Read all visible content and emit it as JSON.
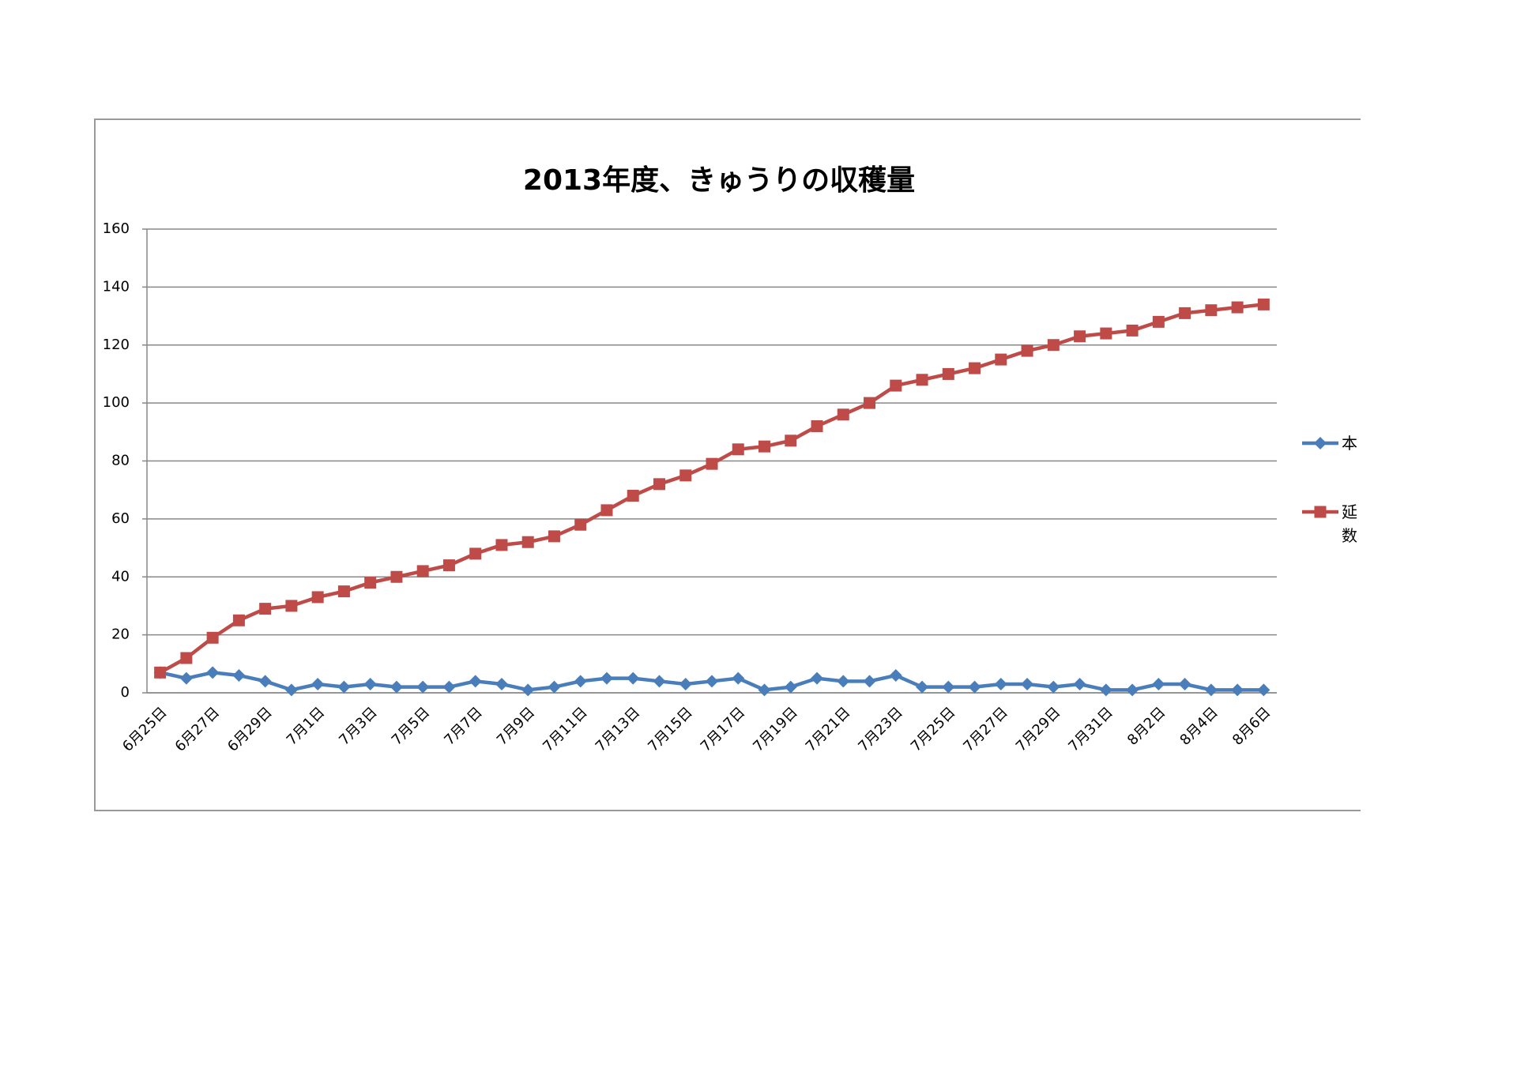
{
  "chart_data": {
    "type": "line",
    "title": "2013年度、きゅうりの収穫量",
    "categories": [
      "6月25日",
      null,
      "6月27日",
      null,
      "6月29日",
      null,
      "7月1日",
      null,
      "7月3日",
      null,
      "7月5日",
      null,
      "7月7日",
      null,
      "7月9日",
      null,
      "7月11日",
      null,
      "7月13日",
      null,
      "7月15日",
      null,
      "7月17日",
      null,
      "7月19日",
      null,
      "7月21日",
      null,
      "7月23日",
      null,
      "7月25日",
      null,
      "7月27日",
      null,
      "7月29日",
      null,
      "7月31日",
      null,
      "8月2日",
      null,
      "8月4日",
      null,
      "8月6日"
    ],
    "series": [
      {
        "name": "本",
        "color": "#4a7ebb",
        "marker": "diamond",
        "values": [
          7,
          5,
          7,
          6,
          4,
          1,
          3,
          2,
          3,
          2,
          2,
          2,
          4,
          3,
          1,
          2,
          4,
          5,
          5,
          4,
          3,
          4,
          5,
          1,
          2,
          5,
          4,
          4,
          6,
          2,
          2,
          2,
          3,
          3,
          2,
          3,
          1,
          1,
          3,
          3,
          1,
          1,
          1
        ]
      },
      {
        "name": "延数",
        "color": "#be4b48",
        "marker": "square",
        "values": [
          7,
          12,
          19,
          25,
          29,
          30,
          33,
          35,
          38,
          40,
          42,
          44,
          48,
          51,
          52,
          54,
          58,
          63,
          68,
          72,
          75,
          79,
          84,
          85,
          87,
          92,
          96,
          100,
          106,
          108,
          110,
          112,
          115,
          118,
          120,
          123,
          124,
          125,
          128,
          131,
          132,
          133,
          134
        ]
      }
    ],
    "ylim": [
      0,
      160
    ],
    "yticks": [
      0,
      20,
      40,
      60,
      80,
      100,
      120,
      140,
      160
    ],
    "grid": true
  }
}
